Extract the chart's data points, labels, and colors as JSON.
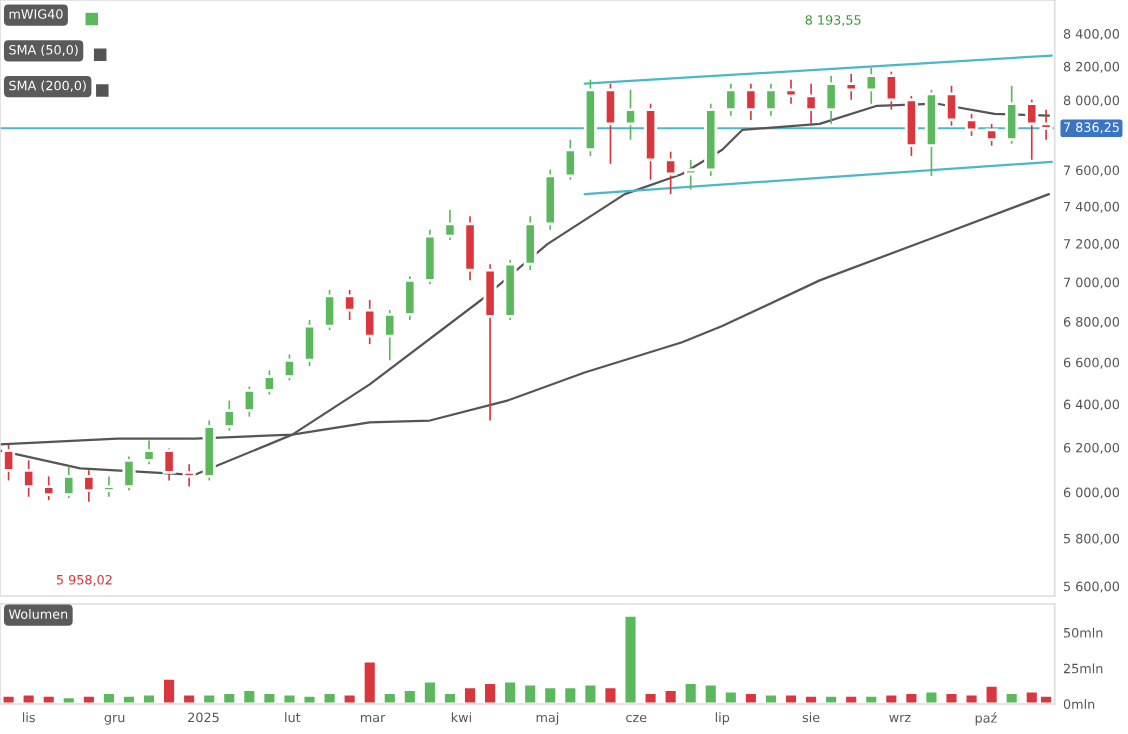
{
  "chart_data": [
    {
      "type": "candlestick",
      "log": true,
      "ylim": [
        5560,
        8610
      ],
      "xlim": [
        "2024-10-22",
        "2025-10-25"
      ],
      "tick_labels": "y",
      "legend": "top left",
      "yticks": [
        {
          "value": 5600,
          "label": "5 600,00"
        },
        {
          "value": 5800,
          "label": "5 800,00"
        },
        {
          "value": 6000,
          "label": "6 000,00"
        },
        {
          "value": 6200,
          "label": "6 200,00"
        },
        {
          "value": 6400,
          "label": "6 400,00"
        },
        {
          "value": 6600,
          "label": "6 600,00"
        },
        {
          "value": 6800,
          "label": "6 800,00"
        },
        {
          "value": 7000,
          "label": "7 000,00"
        },
        {
          "value": 7200,
          "label": "7 200,00"
        },
        {
          "value": 7400,
          "label": "7 400,00"
        },
        {
          "value": 7600,
          "label": "7 600,00"
        },
        {
          "value": 8000,
          "label": "8 000,00"
        },
        {
          "value": 8200,
          "label": "8 200,00"
        },
        {
          "value": 8400,
          "label": "8 400,00"
        }
      ],
      "ref_lines": [
        {
          "axis": "y",
          "value": 7836.25,
          "label": "7 836,25",
          "color": "#4bb8c9"
        }
      ],
      "annotations": [
        "8 193,55",
        "5 958,02"
      ],
      "series": [
        {
          "type": "candlestick",
          "name": "mWIG40",
          "color": "#5cb85c",
          "x": [
            "2024-10-25",
            "2024-11-01",
            "2024-11-08",
            "2024-11-15",
            "2024-11-22",
            "2024-11-29",
            "2024-12-06",
            "2024-12-13",
            "2024-12-20",
            "2024-12-27",
            "2025-01-03",
            "2025-01-10",
            "2025-01-17",
            "2025-01-24",
            "2025-01-31",
            "2025-02-07",
            "2025-02-14",
            "2025-02-21",
            "2025-02-28",
            "2025-03-07",
            "2025-03-14",
            "2025-03-21",
            "2025-03-28",
            "2025-04-04",
            "2025-04-11",
            "2025-04-18",
            "2025-04-25",
            "2025-05-02",
            "2025-05-09",
            "2025-05-16",
            "2025-05-23",
            "2025-05-30",
            "2025-06-06",
            "2025-06-13",
            "2025-06-20",
            "2025-06-27",
            "2025-07-04",
            "2025-07-11",
            "2025-07-18",
            "2025-07-25",
            "2025-08-01",
            "2025-08-08",
            "2025-08-15",
            "2025-08-22",
            "2025-08-29",
            "2025-09-05",
            "2025-09-12",
            "2025-09-19",
            "2025-09-26",
            "2025-10-03",
            "2025-10-10",
            "2025-10-17",
            "2025-10-22"
          ],
          "ohlc": [
            [
              6186,
              6214,
              6052,
              6097
            ],
            [
              6097,
              6142,
              5980,
              6025
            ],
            [
              6025,
              6070,
              5965,
              5989
            ],
            [
              5989,
              6115,
              5975,
              6070
            ],
            [
              6070,
              6097,
              5958.02,
              6007
            ],
            [
              6007,
              6070,
              5980,
              6025
            ],
            [
              6025,
              6159,
              6007,
              6142
            ],
            [
              6142,
              6232,
              6124,
              6186
            ],
            [
              6186,
              6195,
              6052,
              6088
            ],
            [
              6088,
              6124,
              6025,
              6070
            ],
            [
              6070,
              6324,
              6052,
              6296
            ],
            [
              6296,
              6417,
              6277,
              6370
            ],
            [
              6370,
              6484,
              6342,
              6465
            ],
            [
              6465,
              6561,
              6445,
              6531
            ],
            [
              6531,
              6638,
              6513,
              6610
            ],
            [
              6610,
              6808,
              6581,
              6778
            ],
            [
              6778,
              6960,
              6758,
              6930
            ],
            [
              6930,
              6960,
              6808,
              6858
            ],
            [
              6858,
              6910,
              6689,
              6728
            ],
            [
              6728,
              6858,
              6610,
              6836
            ],
            [
              6836,
              7030,
              6808,
              7009
            ],
            [
              7009,
              7274,
              6989,
              7240
            ],
            [
              7240,
              7380,
              7220,
              7306
            ],
            [
              7306,
              7347,
              7009,
              7062
            ],
            [
              7062,
              7093,
              6324,
              6826
            ],
            [
              6826,
              7114,
              6808,
              7093
            ],
            [
              7093,
              7347,
              7062,
              7306
            ],
            [
              7306,
              7601,
              7274,
              7567
            ],
            [
              7567,
              7771,
              7546,
              7714
            ],
            [
              7714,
              8121,
              7679,
              8061
            ],
            [
              8061,
              8097,
              7635,
              7862
            ],
            [
              7862,
              8061,
              7771,
              7944
            ],
            [
              7944,
              7979,
              7546,
              7657
            ],
            [
              7657,
              7703,
              7467,
              7578
            ],
            [
              7578,
              7657,
              7491,
              7601
            ],
            [
              7601,
              7979,
              7567,
              7944
            ],
            [
              7944,
              8097,
              7909,
              8061
            ],
            [
              8061,
              8097,
              7885,
              7944
            ],
            [
              7944,
              8097,
              7909,
              8061
            ],
            [
              8061,
              8121,
              7979,
              8025
            ],
            [
              8025,
              8097,
              7862,
              7944
            ],
            [
              7944,
              8145,
              7862,
              8097
            ],
            [
              8097,
              8156,
              8002,
              8061
            ],
            [
              8061,
              8193.55,
              7979,
              8145
            ],
            [
              8145,
              8169,
              7944,
              8002
            ],
            [
              8002,
              8025,
              7679,
              7737
            ],
            [
              7737,
              8061,
              7567,
              8037
            ],
            [
              8037,
              8085,
              7851,
              7885
            ],
            [
              7885,
              7920,
              7793,
              7827
            ],
            [
              7827,
              7862,
              7737,
              7771
            ],
            [
              7771,
              8085,
              7748,
              7979
            ],
            [
              7979,
              8002,
              7657,
              7862
            ],
            [
              7862,
              7944,
              7771,
              7836.25
            ]
          ],
          "colors": [
            "#d9363e",
            "#d9363e",
            "#d9363e",
            "#5cb85c",
            "#d9363e",
            "#5cb85c",
            "#5cb85c",
            "#5cb85c",
            "#d9363e",
            "#d9363e",
            "#5cb85c",
            "#5cb85c",
            "#5cb85c",
            "#5cb85c",
            "#5cb85c",
            "#5cb85c",
            "#5cb85c",
            "#d9363e",
            "#d9363e",
            "#5cb85c",
            "#5cb85c",
            "#5cb85c",
            "#5cb85c",
            "#d9363e",
            "#d9363e",
            "#5cb85c",
            "#5cb85c",
            "#5cb85c",
            "#5cb85c",
            "#5cb85c",
            "#d9363e",
            "#5cb85c",
            "#d9363e",
            "#d9363e",
            "#5cb85c",
            "#5cb85c",
            "#5cb85c",
            "#d9363e",
            "#5cb85c",
            "#d9363e",
            "#d9363e",
            "#5cb85c",
            "#d9363e",
            "#5cb85c",
            "#d9363e",
            "#d9363e",
            "#5cb85c",
            "#d9363e",
            "#d9363e",
            "#d9363e",
            "#5cb85c",
            "#d9363e",
            "#d9363e"
          ]
        },
        {
          "type": "line",
          "name": "SMA (50,0)",
          "color": "#555555",
          "x": [
            "2024-10-22",
            "2024-11-19",
            "2024-12-29",
            "2025-02-01",
            "2025-02-28",
            "2025-04-08",
            "2025-05-01",
            "2025-05-28",
            "2025-06-17",
            "2025-07-01",
            "2025-07-08",
            "2025-08-04",
            "2025-08-24",
            "2025-09-14",
            "2025-10-04",
            "2025-10-23"
          ],
          "values": [
            6186,
            6106,
            6077,
            6259,
            6494,
            6910,
            7198,
            7467,
            7578,
            7714,
            7827,
            7862,
            7967,
            7979,
            7920,
            7909
          ]
        },
        {
          "type": "line",
          "name": "SMA (200,0)",
          "color": "#555555",
          "x": [
            "2024-10-22",
            "2024-12-02",
            "2024-12-29",
            "2025-02-01",
            "2025-02-28",
            "2025-03-21",
            "2025-04-17",
            "2025-05-14",
            "2025-06-17",
            "2025-07-01",
            "2025-08-04",
            "2025-09-14",
            "2025-10-23"
          ],
          "values": [
            6214,
            6241,
            6241,
            6259,
            6315,
            6324,
            6417,
            6551,
            6698,
            6778,
            7009,
            7240,
            7467
          ]
        },
        {
          "type": "line",
          "color": "#4bb8c9",
          "x": [
            "2025-05-14",
            "2025-10-24"
          ],
          "values": [
            8097,
            8266
          ]
        },
        {
          "type": "line",
          "color": "#4bb8c9",
          "x": [
            "2025-05-14",
            "2025-10-24"
          ],
          "values": [
            7467,
            7646
          ]
        }
      ]
    },
    {
      "type": "bar",
      "title": "Wolumen",
      "ylim": [
        0,
        70
      ],
      "xlim": [
        "2024-10-22",
        "2025-10-25"
      ],
      "yticks": [
        {
          "value": 0,
          "label": "0mln"
        },
        {
          "value": 25,
          "label": "25mln"
        },
        {
          "value": 50,
          "label": "50mln"
        }
      ],
      "xticks": [
        {
          "value": "2024-11-01",
          "label": "lis"
        },
        {
          "value": "2024-12-01",
          "label": "gru"
        },
        {
          "value": "2025-01-01",
          "label": "2025"
        },
        {
          "value": "2025-02-01",
          "label": "lut"
        },
        {
          "value": "2025-03-01",
          "label": "mar"
        },
        {
          "value": "2025-04-01",
          "label": "kwi"
        },
        {
          "value": "2025-05-01",
          "label": "maj"
        },
        {
          "value": "2025-06-01",
          "label": "cze"
        },
        {
          "value": "2025-07-01",
          "label": "lip"
        },
        {
          "value": "2025-08-01",
          "label": "sie"
        },
        {
          "value": "2025-09-01",
          "label": "wrz"
        },
        {
          "value": "2025-10-01",
          "label": "paź"
        }
      ],
      "x": [
        "2024-10-25",
        "2024-11-01",
        "2024-11-08",
        "2024-11-15",
        "2024-11-22",
        "2024-11-29",
        "2024-12-06",
        "2024-12-13",
        "2024-12-20",
        "2024-12-27",
        "2025-01-03",
        "2025-01-10",
        "2025-01-17",
        "2025-01-24",
        "2025-01-31",
        "2025-02-07",
        "2025-02-14",
        "2025-02-21",
        "2025-02-28",
        "2025-03-07",
        "2025-03-14",
        "2025-03-21",
        "2025-03-28",
        "2025-04-04",
        "2025-04-11",
        "2025-04-18",
        "2025-04-25",
        "2025-05-02",
        "2025-05-09",
        "2025-05-16",
        "2025-05-23",
        "2025-05-30",
        "2025-06-06",
        "2025-06-13",
        "2025-06-20",
        "2025-06-27",
        "2025-07-04",
        "2025-07-11",
        "2025-07-18",
        "2025-07-25",
        "2025-08-01",
        "2025-08-08",
        "2025-08-15",
        "2025-08-22",
        "2025-08-29",
        "2025-09-05",
        "2025-09-12",
        "2025-09-19",
        "2025-09-26",
        "2025-10-03",
        "2025-10-10",
        "2025-10-17",
        "2025-10-22"
      ],
      "values": [
        6,
        7,
        6,
        5,
        6,
        8,
        6,
        7,
        18,
        7,
        7,
        8,
        10,
        8,
        7,
        6,
        8,
        7,
        30,
        8,
        10,
        16,
        8,
        12,
        15,
        16,
        14,
        12,
        12,
        14,
        12,
        62,
        8,
        10,
        15,
        14,
        9,
        8,
        7,
        7,
        6,
        6,
        6,
        6,
        7,
        8,
        9,
        8,
        7,
        13,
        8,
        9,
        6
      ],
      "colors": [
        "#d9363e",
        "#d9363e",
        "#d9363e",
        "#5cb85c",
        "#d9363e",
        "#5cb85c",
        "#5cb85c",
        "#5cb85c",
        "#d9363e",
        "#d9363e",
        "#5cb85c",
        "#5cb85c",
        "#5cb85c",
        "#5cb85c",
        "#5cb85c",
        "#5cb85c",
        "#5cb85c",
        "#d9363e",
        "#d9363e",
        "#5cb85c",
        "#5cb85c",
        "#5cb85c",
        "#5cb85c",
        "#d9363e",
        "#d9363e",
        "#5cb85c",
        "#5cb85c",
        "#5cb85c",
        "#5cb85c",
        "#5cb85c",
        "#d9363e",
        "#5cb85c",
        "#d9363e",
        "#d9363e",
        "#5cb85c",
        "#5cb85c",
        "#5cb85c",
        "#d9363e",
        "#5cb85c",
        "#d9363e",
        "#d9363e",
        "#5cb85c",
        "#d9363e",
        "#5cb85c",
        "#d9363e",
        "#d9363e",
        "#5cb85c",
        "#d9363e",
        "#d9363e",
        "#d9363e",
        "#5cb85c",
        "#d9363e",
        "#d9363e"
      ]
    }
  ]
}
